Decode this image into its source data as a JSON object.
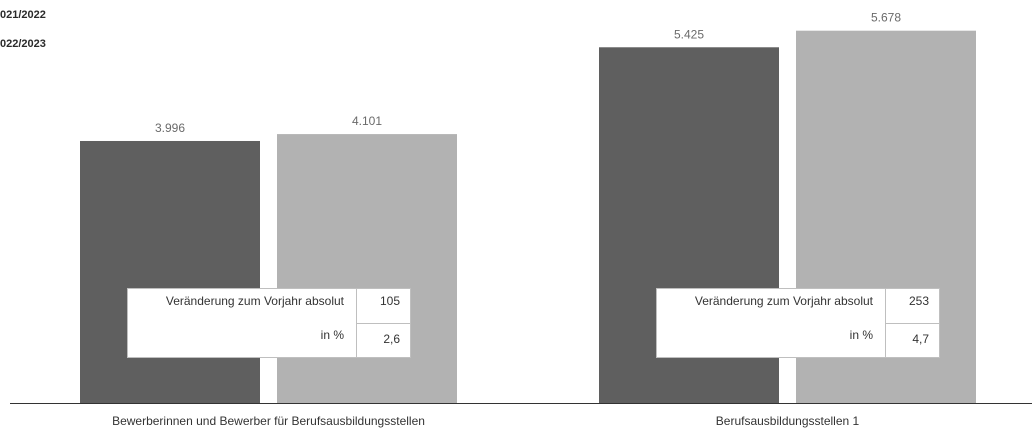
{
  "legend": [
    "021/2022",
    "022/2023"
  ],
  "chart_data": {
    "type": "bar",
    "categories": [
      "Bewerberinnen und Bewerber für Berufsausbildungsstellen",
      "Berufsausbildungsstellen 1"
    ],
    "series": [
      {
        "name": "021/2022",
        "values": [
          3996,
          5425
        ],
        "labels": [
          "3.996",
          "5.425"
        ],
        "color": "#5f5f5f"
      },
      {
        "name": "022/2023",
        "values": [
          4101,
          5678
        ],
        "labels": [
          "4.101",
          "5.678"
        ],
        "color": "#b2b2b2"
      }
    ],
    "ylim": [
      0,
      6000
    ],
    "grid": false
  },
  "change_boxes": [
    {
      "label_absolute": "Veränderung zum Vorjahr absolut",
      "value_absolute": "105",
      "label_percent": "in %",
      "value_percent": "2,6"
    },
    {
      "label_absolute": "Veränderung zum Vorjahr absolut",
      "value_absolute": "253",
      "label_percent": "in %",
      "value_percent": "4,7"
    }
  ]
}
